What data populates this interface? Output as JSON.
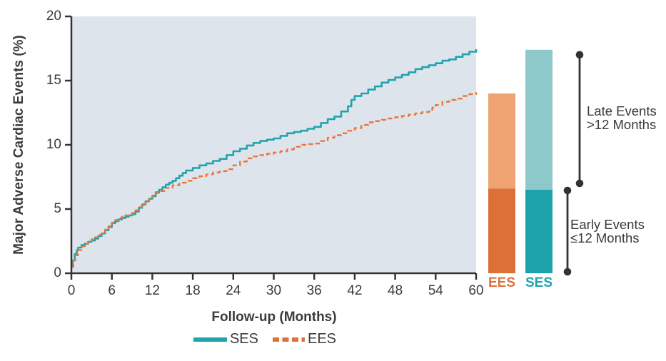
{
  "colors": {
    "plot_bg": "#DEE4EC",
    "axis": "#333333",
    "text": "#3B3B3B",
    "bracket": "#333333",
    "ses_line": "#22A4AC",
    "ees_line": "#E5773F",
    "ses_dark": "#1EA2AB",
    "ses_light": "#8DC9CB",
    "ees_dark": "#DB7038",
    "ees_light": "#EFA373"
  },
  "chart_data": [
    {
      "type": "line",
      "title": "",
      "xlabel": "Follow-up (Months)",
      "ylabel": "Major Adverse Cardiac Events (%)",
      "xlim": [
        0,
        60
      ],
      "ylim": [
        0,
        20
      ],
      "xticks": [
        0,
        6,
        12,
        18,
        24,
        30,
        36,
        42,
        48,
        54,
        60
      ],
      "yticks": [
        0,
        5,
        10,
        15,
        20
      ],
      "grid": false,
      "legend_position": "bottom",
      "series": [
        {
          "name": "SES",
          "style": "solid",
          "color": "#22A4AC",
          "points": [
            [
              0,
              0.6
            ],
            [
              0.2,
              1.0
            ],
            [
              0.5,
              1.5
            ],
            [
              0.8,
              1.8
            ],
            [
              1,
              2.0
            ],
            [
              1.5,
              2.2
            ],
            [
              2,
              2.3
            ],
            [
              2.5,
              2.45
            ],
            [
              3,
              2.55
            ],
            [
              3.5,
              2.7
            ],
            [
              4,
              2.9
            ],
            [
              4.5,
              3.1
            ],
            [
              5,
              3.35
            ],
            [
              5.5,
              3.6
            ],
            [
              6,
              3.9
            ],
            [
              6.5,
              4.05
            ],
            [
              7,
              4.2
            ],
            [
              7.5,
              4.3
            ],
            [
              8,
              4.4
            ],
            [
              8.5,
              4.5
            ],
            [
              9,
              4.6
            ],
            [
              9.5,
              4.8
            ],
            [
              10,
              5.1
            ],
            [
              10.5,
              5.35
            ],
            [
              11,
              5.6
            ],
            [
              11.5,
              5.8
            ],
            [
              12,
              6.0
            ],
            [
              12.5,
              6.3
            ],
            [
              13,
              6.5
            ],
            [
              13.5,
              6.7
            ],
            [
              14,
              6.9
            ],
            [
              14.5,
              7.05
            ],
            [
              15,
              7.2
            ],
            [
              15.5,
              7.4
            ],
            [
              16,
              7.6
            ],
            [
              16.5,
              7.8
            ],
            [
              17,
              8.0
            ],
            [
              18,
              8.2
            ],
            [
              19,
              8.4
            ],
            [
              20,
              8.55
            ],
            [
              21,
              8.75
            ],
            [
              22,
              8.9
            ],
            [
              23,
              9.2
            ],
            [
              24,
              9.5
            ],
            [
              25,
              9.7
            ],
            [
              26,
              9.95
            ],
            [
              27,
              10.15
            ],
            [
              28,
              10.3
            ],
            [
              29,
              10.4
            ],
            [
              30,
              10.5
            ],
            [
              31,
              10.7
            ],
            [
              32,
              10.9
            ],
            [
              33,
              11.0
            ],
            [
              34,
              11.1
            ],
            [
              35,
              11.25
            ],
            [
              36,
              11.4
            ],
            [
              37,
              11.7
            ],
            [
              38,
              12.0
            ],
            [
              39,
              12.2
            ],
            [
              40,
              12.6
            ],
            [
              41,
              13.0
            ],
            [
              41.5,
              13.5
            ],
            [
              42,
              13.8
            ],
            [
              43,
              14.0
            ],
            [
              44,
              14.3
            ],
            [
              45,
              14.55
            ],
            [
              46,
              14.85
            ],
            [
              47,
              15.05
            ],
            [
              48,
              15.25
            ],
            [
              49,
              15.45
            ],
            [
              50,
              15.65
            ],
            [
              51,
              15.9
            ],
            [
              52,
              16.05
            ],
            [
              53,
              16.2
            ],
            [
              54,
              16.35
            ],
            [
              55,
              16.55
            ],
            [
              56,
              16.65
            ],
            [
              57,
              16.85
            ],
            [
              58,
              17.05
            ],
            [
              59,
              17.25
            ],
            [
              60,
              17.45
            ]
          ]
        },
        {
          "name": "EES",
          "style": "dashed",
          "color": "#E5773F",
          "points": [
            [
              0,
              0.5
            ],
            [
              0.3,
              1.0
            ],
            [
              0.6,
              1.4
            ],
            [
              1,
              1.8
            ],
            [
              1.5,
              2.1
            ],
            [
              2,
              2.3
            ],
            [
              2.5,
              2.5
            ],
            [
              3,
              2.65
            ],
            [
              3.5,
              2.8
            ],
            [
              4,
              3.0
            ],
            [
              4.5,
              3.2
            ],
            [
              5,
              3.4
            ],
            [
              5.5,
              3.65
            ],
            [
              6,
              3.95
            ],
            [
              6.5,
              4.15
            ],
            [
              7,
              4.3
            ],
            [
              7.5,
              4.4
            ],
            [
              8,
              4.5
            ],
            [
              8.5,
              4.6
            ],
            [
              9,
              4.7
            ],
            [
              9.5,
              4.9
            ],
            [
              10,
              5.15
            ],
            [
              10.5,
              5.4
            ],
            [
              11,
              5.6
            ],
            [
              11.5,
              5.8
            ],
            [
              12,
              6.05
            ],
            [
              12.5,
              6.25
            ],
            [
              13,
              6.4
            ],
            [
              14,
              6.65
            ],
            [
              15,
              6.85
            ],
            [
              16,
              7.05
            ],
            [
              17,
              7.2
            ],
            [
              18,
              7.4
            ],
            [
              19,
              7.55
            ],
            [
              20,
              7.7
            ],
            [
              21,
              7.85
            ],
            [
              22,
              7.95
            ],
            [
              23,
              8.1
            ],
            [
              24,
              8.4
            ],
            [
              25,
              8.7
            ],
            [
              26,
              8.95
            ],
            [
              27,
              9.1
            ],
            [
              28,
              9.2
            ],
            [
              29,
              9.3
            ],
            [
              30,
              9.4
            ],
            [
              31,
              9.5
            ],
            [
              32,
              9.65
            ],
            [
              33,
              9.85
            ],
            [
              34,
              10.0
            ],
            [
              35,
              10.05
            ],
            [
              36,
              10.1
            ],
            [
              37,
              10.3
            ],
            [
              38,
              10.55
            ],
            [
              39,
              10.75
            ],
            [
              40,
              10.9
            ],
            [
              41,
              11.1
            ],
            [
              42,
              11.3
            ],
            [
              43,
              11.55
            ],
            [
              44,
              11.75
            ],
            [
              45,
              11.85
            ],
            [
              46,
              11.95
            ],
            [
              47,
              12.05
            ],
            [
              48,
              12.15
            ],
            [
              49,
              12.25
            ],
            [
              50,
              12.35
            ],
            [
              51,
              12.45
            ],
            [
              52,
              12.55
            ],
            [
              53,
              12.6
            ],
            [
              53.5,
              12.9
            ],
            [
              54,
              13.1
            ],
            [
              55,
              13.35
            ],
            [
              56,
              13.5
            ],
            [
              57,
              13.6
            ],
            [
              58,
              13.8
            ],
            [
              59,
              13.95
            ],
            [
              60,
              14.1
            ]
          ]
        }
      ]
    },
    {
      "type": "stacked-bar",
      "categories": [
        "EES",
        "SES"
      ],
      "series": [
        {
          "name": "Early Events ≤12 Months",
          "values": [
            6.6,
            6.5
          ]
        },
        {
          "name": "Late Events >12 Months",
          "values": [
            7.4,
            10.9
          ]
        }
      ],
      "totals": [
        14.0,
        17.4
      ],
      "ylim": [
        0,
        20
      ],
      "annotations": {
        "late": {
          "line1": "Late Events",
          "line2": ">12 Months"
        },
        "early": {
          "line1": "Early Events",
          "line2": "≤12 Months"
        }
      }
    }
  ]
}
